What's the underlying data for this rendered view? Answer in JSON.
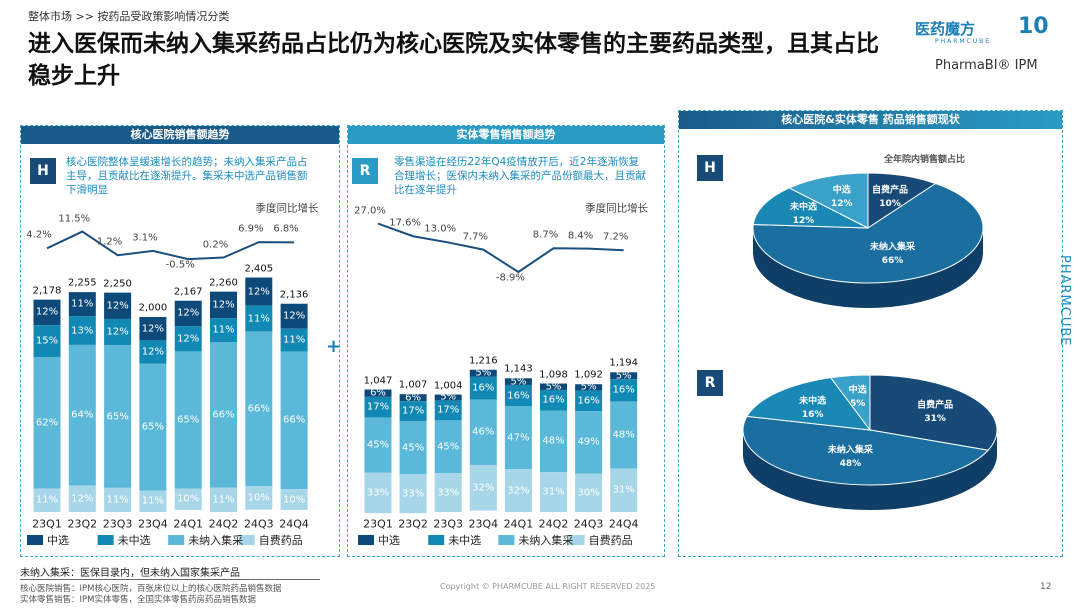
{
  "breadcrumb": "整体市场 >> 按药品受政策影响情况分类",
  "title": "进入医保而未纳入集采药品占比仍为核心医院及实体零售的主要药品类型，且其占比稳步上升",
  "logo": {
    "brand": "医药魔方",
    "brand_en": "PHARMCUBE",
    "anniv": "10",
    "product": "PharmaBI® IPM"
  },
  "side_brand": "PHARMCUBE",
  "plus": "+",
  "colors": {
    "selected": "#0d4a7a",
    "not_selected": "#1289b5",
    "not_vbp": "#5bb8d8",
    "self_pay": "#a6d6e8"
  },
  "chart_data": [
    {
      "type": "bar",
      "id": "hospital",
      "title": "核心医院销售额趋势",
      "badge": "H",
      "desc": "核心医院整体呈缓速增长的趋势；未纳入集采产品占主导，且贡献比在逐渐提升。集采未中选产品销售额下滑明显",
      "line_label": "季度同比增长",
      "categories": [
        "23Q1",
        "23Q2",
        "23Q3",
        "23Q4",
        "24Q1",
        "24Q2",
        "24Q3",
        "24Q4"
      ],
      "totals": [
        "2,178",
        "2,255",
        "2,250",
        "2,000",
        "2,167",
        "2,260",
        "2,405",
        "2,136"
      ],
      "total_values": [
        2178,
        2255,
        2250,
        2000,
        2167,
        2260,
        2405,
        2136
      ],
      "growth": [
        4.2,
        11.5,
        1.2,
        3.1,
        -0.5,
        0.2,
        6.9,
        6.8
      ],
      "growth_labels": [
        "4.2%",
        "11.5%",
        "1.2%",
        "3.1%",
        "-0.5%",
        "0.2%",
        "6.9%",
        "6.8%"
      ],
      "series": [
        {
          "name": "中选",
          "values": [
            12,
            11,
            12,
            12,
            12,
            12,
            12,
            12
          ]
        },
        {
          "name": "未中选",
          "values": [
            15,
            13,
            12,
            12,
            12,
            11,
            11,
            11
          ]
        },
        {
          "name": "未纳入集采",
          "values": [
            62,
            64,
            65,
            65,
            65,
            66,
            66,
            66
          ]
        },
        {
          "name": "自费药品",
          "values": [
            11,
            12,
            11,
            11,
            10,
            11,
            10,
            10
          ]
        }
      ]
    },
    {
      "type": "bar",
      "id": "retail",
      "title": "实体零售销售额趋势",
      "badge": "R",
      "desc": "零售渠道在经历22年Q4疫情放开后，近2年逐渐恢复合理增长；医保内未纳入集采的产品份额最大，且贡献比在逐年提升",
      "line_label": "季度同比增长",
      "categories": [
        "23Q1",
        "23Q2",
        "23Q3",
        "23Q4",
        "24Q1",
        "24Q2",
        "24Q3",
        "24Q4"
      ],
      "totals": [
        "1,047",
        "1,007",
        "1,004",
        "1,216",
        "1,143",
        "1,098",
        "1,092",
        "1,194"
      ],
      "total_values": [
        1047,
        1007,
        1004,
        1216,
        1143,
        1098,
        1092,
        1194
      ],
      "growth": [
        27.0,
        17.6,
        13.0,
        7.7,
        -8.9,
        8.7,
        8.4,
        7.2
      ],
      "growth_labels": [
        "27.0%",
        "17.6%",
        "13.0%",
        "7.7%",
        "-8.9%",
        "8.7%",
        "8.4%",
        "7.2%"
      ],
      "series": [
        {
          "name": "中选",
          "values": [
            6,
            6,
            5,
            5,
            5,
            5,
            5,
            5
          ]
        },
        {
          "name": "未中选",
          "values": [
            17,
            17,
            17,
            16,
            16,
            16,
            16,
            16
          ]
        },
        {
          "name": "未纳入集采",
          "values": [
            45,
            45,
            45,
            46,
            47,
            48,
            49,
            48
          ]
        },
        {
          "name": "自费药品",
          "values": [
            33,
            33,
            33,
            32,
            32,
            31,
            30,
            31
          ]
        }
      ]
    },
    {
      "type": "pie",
      "id": "pie-h",
      "panel_title": "核心医院&实体零售 药品销售额现状",
      "badge": "H",
      "title": "全年院内销售额占比",
      "slices": [
        {
          "name": "自费产品",
          "value": 10,
          "label": "10%",
          "color": "#184a78"
        },
        {
          "name": "未纳入集采",
          "value": 66,
          "label": "66%",
          "color": "#1b6fa0"
        },
        {
          "name": "未中选",
          "value": 12,
          "label": "12%",
          "color": "#1a88b5"
        },
        {
          "name": "中选",
          "value": 12,
          "label": "12%",
          "color": "#3aa2c8"
        }
      ]
    },
    {
      "type": "pie",
      "id": "pie-r",
      "badge": "R",
      "slices": [
        {
          "name": "自费产品",
          "value": 31,
          "label": "31%",
          "color": "#184a78"
        },
        {
          "name": "未纳入集采",
          "value": 48,
          "label": "48%",
          "color": "#1b6fa0"
        },
        {
          "name": "未中选",
          "value": 16,
          "label": "16%",
          "color": "#1a88b5"
        },
        {
          "name": "中选",
          "value": 5,
          "label": "5%",
          "color": "#3aa2c8"
        }
      ]
    }
  ],
  "footer": {
    "note": "未纳入集采：医保目录内，但未纳入国家集采产品",
    "src1": "核心医院销售：IPM核心医院，百张床位以上的核心医院药品销售数据",
    "src2": "实体零售销售：IPM实体零售，全国实体零售药房药品销售数据",
    "copyright": "Copyright © PHARMCUBE ALL RIGHT RESERVED 2025",
    "page": "12"
  }
}
